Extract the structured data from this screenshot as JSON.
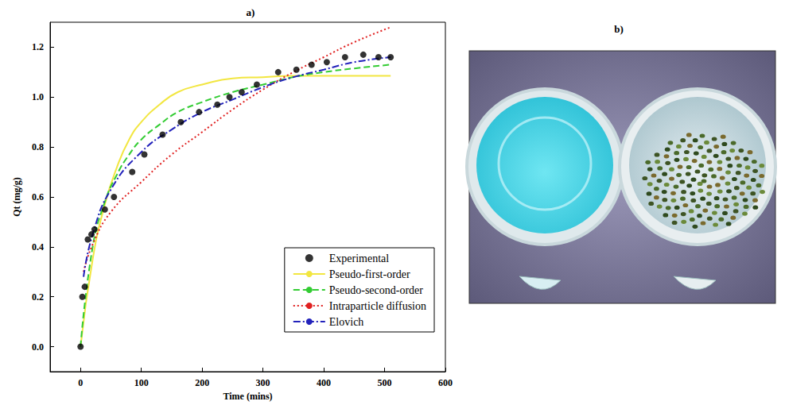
{
  "chart_data": [
    {
      "type": "line",
      "title": "a)",
      "x_label": "Time (mins)",
      "y_label": "Qt (mg/g)",
      "xlim": [
        -50,
        600
      ],
      "xticks": [
        0,
        100,
        200,
        300,
        400,
        500,
        600
      ],
      "ylim": [
        -0.1,
        1.3
      ],
      "yticks": [
        {
          "value": 0,
          "label": "0.0"
        },
        {
          "value": 0.2,
          "label": "0.2"
        },
        {
          "value": 0.4,
          "label": "0.4"
        },
        {
          "value": 0.6,
          "label": "0.6"
        },
        {
          "value": 0.8,
          "label": "0.8"
        },
        {
          "value": 1.0,
          "label": "1.0"
        },
        {
          "value": 1.2,
          "label": "1.2"
        }
      ],
      "grid": false,
      "legend": "lower right",
      "series": [
        {
          "name": "Experimental",
          "type": "scatter",
          "marker": "circle",
          "color": "#000000",
          "x": [
            0,
            3,
            7,
            12,
            18,
            23,
            40,
            55,
            85,
            105,
            135,
            165,
            195,
            225,
            245,
            265,
            290,
            325,
            355,
            380,
            405,
            435,
            465,
            490,
            510
          ],
          "values": [
            0,
            0.2,
            0.24,
            0.43,
            0.45,
            0.47,
            0.55,
            0.6,
            0.7,
            0.77,
            0.85,
            0.9,
            0.94,
            0.97,
            1.0,
            1.02,
            1.05,
            1.1,
            1.11,
            1.13,
            1.14,
            1.16,
            1.17,
            1.16,
            1.16
          ]
        },
        {
          "name": "Pseudo-first-order",
          "type": "line",
          "line_style": "solid",
          "color": "#f2e640",
          "x": [
            0,
            20,
            40,
            60,
            80,
            100,
            130,
            160,
            200,
            250,
            300,
            350,
            400,
            450,
            510
          ],
          "values": [
            0,
            0.35,
            0.57,
            0.72,
            0.83,
            0.9,
            0.97,
            1.02,
            1.05,
            1.075,
            1.08,
            1.085,
            1.085,
            1.085,
            1.085
          ]
        },
        {
          "name": "Pseudo-second-order",
          "type": "line",
          "line_style": "dashed",
          "color": "#33cc33",
          "x": [
            0,
            20,
            40,
            60,
            80,
            100,
            130,
            160,
            200,
            250,
            300,
            350,
            400,
            450,
            510
          ],
          "values": [
            0,
            0.4,
            0.58,
            0.69,
            0.77,
            0.83,
            0.89,
            0.94,
            0.98,
            1.02,
            1.05,
            1.08,
            1.1,
            1.115,
            1.13
          ]
        },
        {
          "name": "Intraparticle diffusion",
          "type": "line",
          "line_style": "dotted",
          "color": "#e02020",
          "x": [
            5,
            20,
            50,
            100,
            150,
            200,
            250,
            300,
            350,
            400,
            450,
            510
          ],
          "values": [
            0.3,
            0.41,
            0.54,
            0.66,
            0.77,
            0.86,
            0.95,
            1.03,
            1.1,
            1.16,
            1.22,
            1.28
          ]
        },
        {
          "name": "Elovich",
          "type": "line",
          "line_style": "dashdot",
          "color": "#2222bb",
          "x": [
            5,
            20,
            50,
            100,
            150,
            200,
            250,
            300,
            350,
            400,
            450,
            510
          ],
          "values": [
            0.28,
            0.45,
            0.63,
            0.78,
            0.87,
            0.94,
            0.99,
            1.04,
            1.08,
            1.11,
            1.14,
            1.16
          ]
        }
      ]
    },
    {
      "type": "image",
      "title": "b)"
    }
  ]
}
